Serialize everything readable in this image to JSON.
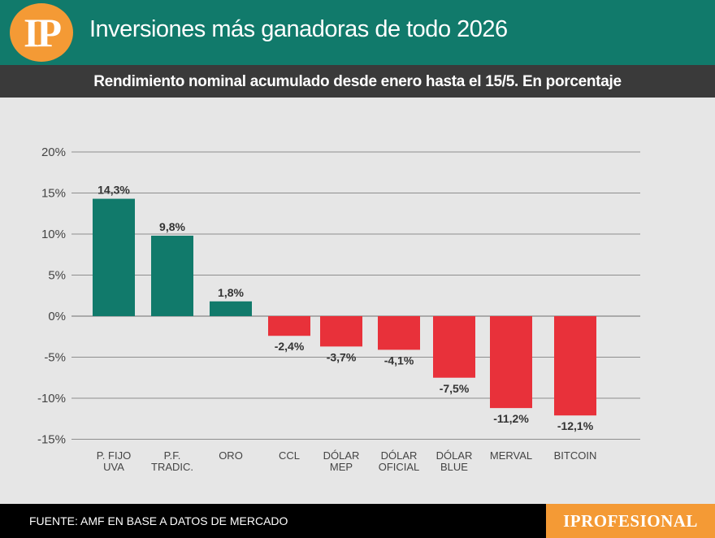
{
  "header": {
    "logo_text": "IP",
    "title": "Inversiones más ganadoras de todo 2026",
    "subtitle": "Rendimiento nominal acumulado desde enero hasta el 15/5. En porcentaje"
  },
  "footer": {
    "source": "FUENTE: AMF EN BASE A DATOS DE MERCADO",
    "brand": "IPROFESIONAL"
  },
  "colors": {
    "positive": "#117a6b",
    "negative": "#e8313a",
    "header_bg": "#117a6b",
    "subheader_bg": "#3a3a3a",
    "accent": "#f49a35"
  },
  "chart_data": {
    "type": "bar",
    "categories": [
      [
        "P. FIJO",
        "UVA"
      ],
      [
        "P.F.",
        "TRADIC."
      ],
      [
        "ORO"
      ],
      [
        "CCL"
      ],
      [
        "DÓLAR",
        "MEP"
      ],
      [
        "DÓLAR",
        "OFICIAL"
      ],
      [
        "DÓLAR",
        "BLUE"
      ],
      [
        "MERVAL"
      ],
      [
        "BITCOIN"
      ]
    ],
    "values": [
      14.3,
      9.8,
      1.8,
      -2.4,
      -3.7,
      -4.1,
      -7.5,
      -11.2,
      -12.1
    ],
    "data_labels": [
      "14,3%",
      "9,8%",
      "1,8%",
      "-2,4%",
      "-3,7%",
      "-4,1%",
      "-7,5%",
      "-11,2%",
      "-12,1%"
    ],
    "yticks": [
      20,
      15,
      10,
      5,
      0,
      -5,
      -10,
      -15
    ],
    "ytick_labels": [
      "20%",
      "15%",
      "10%",
      "5%",
      "0%",
      "-5%",
      "-10%",
      "-15%"
    ],
    "ylim": [
      -15,
      20
    ],
    "grid": true
  }
}
